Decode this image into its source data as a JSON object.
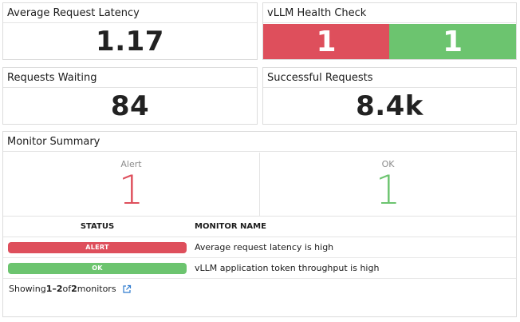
{
  "widgets": {
    "latency": {
      "title": "Average Request Latency",
      "value": "1.17"
    },
    "health": {
      "title": "vLLM Health Check",
      "alert_count": "1",
      "ok_count": "1",
      "alert_color": "#de4f5c",
      "ok_color": "#6cc46f"
    },
    "waiting": {
      "title": "Requests Waiting",
      "value": "84"
    },
    "success": {
      "title": "Successful Requests",
      "value": "8.4k"
    }
  },
  "monitor_summary": {
    "title": "Monitor Summary",
    "alert_label": "Alert",
    "alert_count": "1",
    "ok_label": "OK",
    "ok_count": "1",
    "columns": {
      "status": "STATUS",
      "name": "MONITOR NAME"
    },
    "rows": [
      {
        "status": "ALERT",
        "name": "Average request latency is high"
      },
      {
        "status": "OK",
        "name": "vLLM application token throughput is high"
      }
    ],
    "footer": {
      "prefix": "Showing ",
      "range": "1–2",
      "of": " of ",
      "total": "2",
      "suffix": " monitors",
      "icon": "external-link-icon"
    }
  }
}
